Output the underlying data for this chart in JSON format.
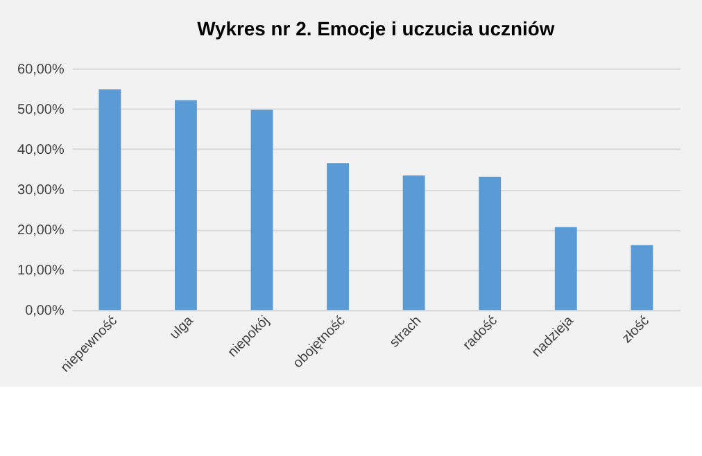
{
  "chart_data": {
    "type": "bar",
    "title": "Wykres nr 2. Emocje i uczucia uczniów",
    "categories": [
      "niepewność",
      "ulga",
      "niepokój",
      "obojętność",
      "strach",
      "radość",
      "nadzieja",
      "złość"
    ],
    "values": [
      54.8,
      52.1,
      49.7,
      36.5,
      33.4,
      33.1,
      20.6,
      16.1
    ],
    "color": "#5b9bd5",
    "ylim": [
      0,
      60
    ],
    "yticks": [
      {
        "value": 0,
        "label": "0,00%"
      },
      {
        "value": 10,
        "label": "10,00%"
      },
      {
        "value": 20,
        "label": "20,00%"
      },
      {
        "value": 30,
        "label": "30,00%"
      },
      {
        "value": 40,
        "label": "40,00%"
      },
      {
        "value": 50,
        "label": "50,00%"
      },
      {
        "value": 60,
        "label": "60,00%"
      }
    ],
    "grid": "y"
  }
}
